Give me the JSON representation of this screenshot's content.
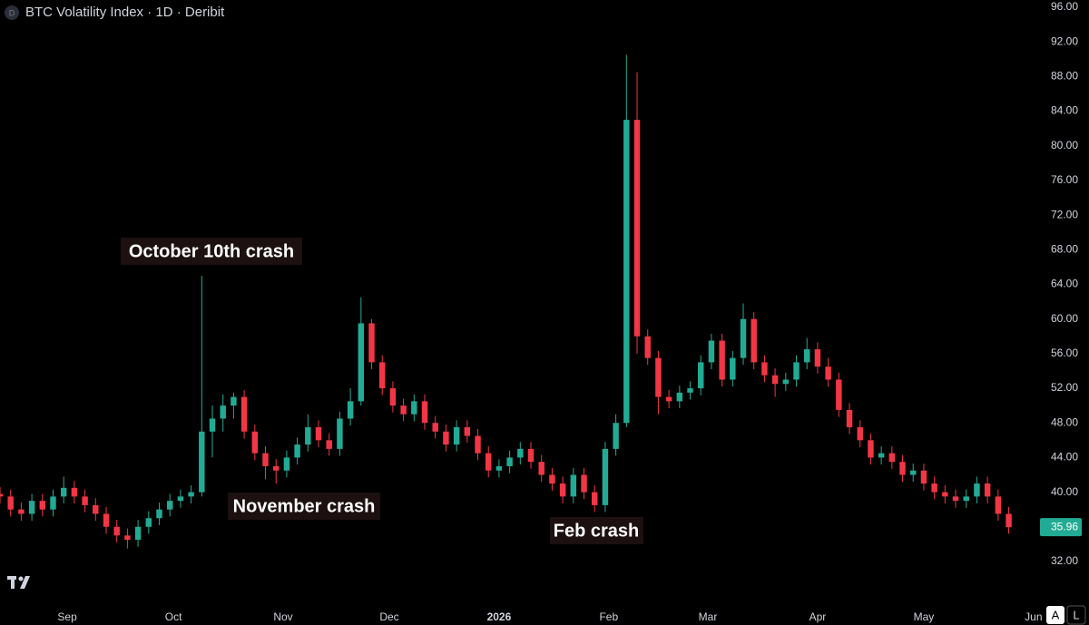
{
  "chart_data": {
    "type": "candlestick",
    "title": "BTC Volatility Index · 1D · Deribit",
    "symbol_badge": "D",
    "annotations": [
      "October 10th crash",
      "November crash",
      "Feb crash"
    ],
    "buttons": [
      "A",
      "L"
    ],
    "x": [
      0,
      3,
      6,
      9,
      12,
      15,
      18,
      21,
      24,
      27,
      30,
      33,
      36,
      39,
      42,
      45,
      48,
      51,
      54,
      57,
      60,
      63,
      66,
      69,
      72,
      75,
      78,
      81,
      84,
      87,
      90,
      93,
      96,
      99,
      102,
      105,
      108,
      111,
      114,
      117,
      120,
      123,
      126,
      129,
      132,
      135,
      138,
      141,
      144,
      147,
      150,
      153,
      156,
      159,
      162,
      165,
      168,
      171,
      174,
      177,
      180,
      183,
      186,
      189,
      192,
      195,
      198,
      201,
      204,
      207,
      210,
      213,
      216,
      219,
      222,
      225,
      228,
      231,
      234,
      237,
      240,
      243,
      246,
      249,
      252,
      255,
      258,
      261,
      264,
      267,
      270,
      273,
      276,
      279,
      282,
      285
    ],
    "open": [
      39.8,
      39.5,
      38.0,
      37.5,
      39.0,
      38.0,
      39.5,
      40.5,
      39.5,
      38.5,
      37.5,
      36.0,
      35.0,
      34.5,
      36.0,
      37.0,
      38.0,
      39.0,
      39.5,
      40.0,
      47.0,
      48.5,
      50.0,
      51.0,
      47.0,
      44.5,
      43.0,
      42.5,
      44.0,
      45.5,
      47.5,
      46.0,
      45.0,
      48.5,
      50.5,
      59.5,
      55.0,
      52.0,
      50.0,
      49.0,
      50.5,
      48.0,
      47.0,
      45.5,
      47.5,
      46.5,
      44.5,
      42.5,
      43.0,
      44.0,
      45.0,
      43.5,
      42.0,
      41.0,
      39.5,
      42.0,
      40.0,
      38.5,
      45.0,
      48.0,
      83.0,
      58.0,
      55.5,
      51.0,
      50.5,
      51.5,
      52.0,
      55.0,
      57.5,
      53.0,
      55.5,
      60.0,
      55.0,
      53.5,
      52.5,
      53.0,
      55.0,
      56.5,
      54.5,
      53.0,
      49.5,
      47.5,
      46.0,
      44.0,
      44.5,
      43.5,
      42.0,
      42.5,
      41.0,
      40.0,
      39.5,
      39.0,
      39.5,
      41.0,
      39.5,
      37.5
    ],
    "high": [
      40.6,
      40.3,
      38.8,
      39.8,
      39.8,
      40.3,
      41.8,
      41.3,
      40.3,
      39.3,
      38.3,
      36.8,
      35.8,
      36.8,
      37.8,
      38.8,
      39.8,
      40.3,
      40.8,
      65.0,
      50.0,
      51.3,
      51.5,
      51.8,
      47.8,
      45.3,
      43.8,
      44.8,
      46.3,
      49.0,
      48.3,
      46.8,
      49.3,
      52.0,
      62.5,
      60.0,
      55.8,
      52.8,
      50.8,
      51.3,
      51.3,
      48.8,
      47.8,
      48.3,
      48.3,
      47.3,
      45.3,
      43.8,
      44.8,
      45.8,
      45.8,
      44.3,
      42.8,
      41.8,
      42.8,
      42.8,
      40.8,
      45.8,
      49.0,
      90.5,
      88.5,
      58.8,
      56.3,
      51.8,
      52.3,
      52.8,
      55.8,
      58.3,
      58.3,
      56.3,
      61.8,
      60.8,
      55.8,
      54.3,
      53.8,
      55.8,
      57.8,
      57.3,
      55.5,
      53.8,
      50.3,
      48.3,
      46.8,
      45.3,
      45.3,
      44.3,
      43.3,
      43.3,
      41.8,
      40.8,
      40.3,
      40.3,
      41.8,
      41.8,
      40.3,
      38.3
    ],
    "low": [
      38.7,
      37.2,
      36.7,
      36.7,
      37.2,
      37.2,
      38.7,
      38.7,
      37.7,
      36.7,
      35.2,
      34.2,
      33.5,
      33.7,
      35.2,
      36.2,
      37.2,
      38.2,
      38.7,
      39.5,
      44.0,
      47.0,
      48.5,
      46.2,
      43.7,
      41.5,
      41.0,
      41.7,
      43.2,
      44.7,
      45.2,
      44.2,
      44.2,
      47.7,
      50.0,
      54.2,
      51.2,
      49.2,
      48.2,
      48.2,
      47.2,
      46.2,
      44.7,
      44.7,
      45.7,
      43.7,
      41.7,
      41.7,
      42.2,
      43.2,
      42.7,
      41.2,
      40.2,
      38.7,
      38.7,
      39.2,
      37.7,
      37.7,
      44.2,
      47.5,
      56.0,
      54.7,
      49.0,
      49.7,
      49.7,
      50.7,
      51.2,
      54.2,
      52.2,
      52.2,
      54.7,
      54.2,
      52.7,
      51.0,
      51.7,
      52.2,
      54.2,
      53.7,
      52.2,
      48.7,
      46.7,
      45.2,
      43.2,
      43.2,
      42.7,
      41.2,
      41.2,
      40.2,
      39.2,
      38.7,
      38.2,
      38.2,
      38.7,
      38.7,
      36.7,
      35.2
    ],
    "close": [
      39.5,
      38.0,
      37.5,
      39.0,
      38.0,
      39.5,
      40.5,
      39.5,
      38.5,
      37.5,
      36.0,
      35.0,
      34.5,
      36.0,
      37.0,
      38.0,
      39.0,
      39.5,
      40.0,
      47.0,
      48.5,
      50.0,
      51.0,
      47.0,
      44.5,
      43.0,
      42.5,
      44.0,
      45.5,
      47.5,
      46.0,
      45.0,
      48.5,
      50.5,
      59.5,
      55.0,
      52.0,
      50.0,
      49.0,
      50.5,
      48.0,
      47.0,
      45.5,
      47.5,
      46.5,
      44.5,
      42.5,
      43.0,
      44.0,
      45.0,
      43.5,
      42.0,
      41.0,
      39.5,
      42.0,
      40.0,
      38.5,
      45.0,
      48.0,
      83.0,
      58.0,
      55.5,
      51.0,
      50.5,
      51.5,
      52.0,
      55.0,
      57.5,
      53.0,
      55.5,
      60.0,
      55.0,
      53.5,
      52.5,
      53.0,
      55.0,
      56.5,
      54.5,
      53.0,
      49.5,
      47.5,
      46.0,
      44.0,
      44.5,
      43.5,
      42.0,
      42.5,
      41.0,
      40.0,
      39.5,
      39.0,
      39.5,
      41.0,
      39.5,
      37.5,
      35.96
    ],
    "last_value": 35.96,
    "up_color": "#22ab94",
    "down_color": "#f23645",
    "xlim": [
      0,
      292.3
    ],
    "ylim": [
      27.7,
      96.84
    ],
    "xticks": [
      {
        "value": 19,
        "label": "Sep"
      },
      {
        "value": 49,
        "label": "Oct"
      },
      {
        "value": 80,
        "label": "Nov"
      },
      {
        "value": 110,
        "label": "Dec"
      },
      {
        "value": 141,
        "label": "2026"
      },
      {
        "value": 172,
        "label": "Feb"
      },
      {
        "value": 200,
        "label": "Mar"
      },
      {
        "value": 231,
        "label": "Apr"
      },
      {
        "value": 261,
        "label": "May"
      },
      {
        "value": 292,
        "label": "Jun"
      }
    ],
    "yticks": [
      {
        "value": 32,
        "label": "32.00"
      },
      {
        "value": 36,
        "label": "36.00"
      },
      {
        "value": 40,
        "label": "40.00"
      },
      {
        "value": 44,
        "label": "44.00"
      },
      {
        "value": 48,
        "label": "48.00"
      },
      {
        "value": 52,
        "label": "52.00"
      },
      {
        "value": 56,
        "label": "56.00"
      },
      {
        "value": 60,
        "label": "60.00"
      },
      {
        "value": 64,
        "label": "64.00"
      },
      {
        "value": 68,
        "label": "68.00"
      },
      {
        "value": 72,
        "label": "72.00"
      },
      {
        "value": 76,
        "label": "76.00"
      },
      {
        "value": 80,
        "label": "80.00"
      },
      {
        "value": 84,
        "label": "84.00"
      },
      {
        "value": 88,
        "label": "88.00"
      },
      {
        "value": 92,
        "label": "92.00"
      },
      {
        "value": 96,
        "label": "96.00"
      }
    ],
    "grid": false
  }
}
